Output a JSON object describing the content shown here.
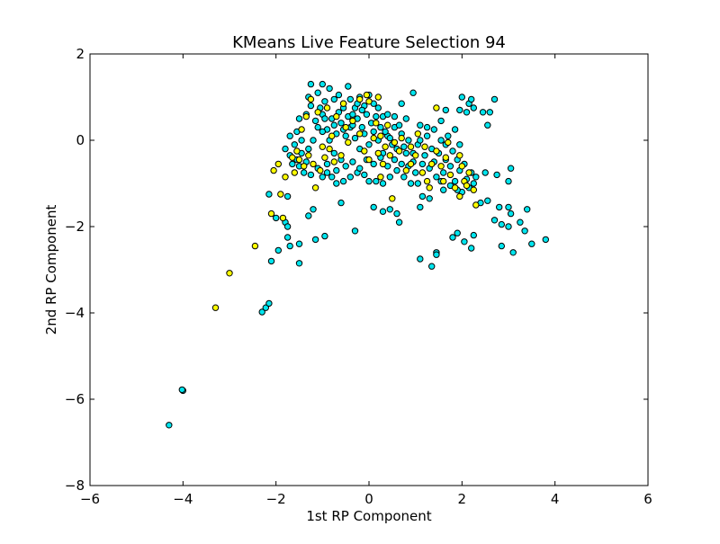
{
  "chart_data": {
    "type": "scatter",
    "title": "KMeans Live Feature Selection 94",
    "xlabel": "1st RP Component",
    "ylabel": "2nd RP Component",
    "xlim": [
      -6,
      6
    ],
    "ylim": [
      -8,
      2
    ],
    "xticks": [
      -6,
      -4,
      -2,
      0,
      2,
      4,
      6
    ],
    "yticks": [
      -8,
      -6,
      -4,
      -2,
      0,
      2
    ],
    "xtick_labels": [
      "−6",
      "−4",
      "−2",
      "0",
      "2",
      "4",
      "6"
    ],
    "ytick_labels": [
      "−8",
      "−6",
      "−4",
      "−2",
      "0",
      "2"
    ],
    "grid": false,
    "legend": false,
    "series": [
      {
        "color": "#00e5ee",
        "points": [
          [
            -4.3,
            -6.6
          ],
          [
            -4.0,
            -5.8
          ],
          [
            -4.02,
            -5.78
          ],
          [
            -2.3,
            -3.98
          ],
          [
            -2.22,
            -3.88
          ],
          [
            -2.15,
            -3.78
          ],
          [
            -2.1,
            -2.8
          ],
          [
            -1.7,
            -2.45
          ],
          [
            -1.75,
            -2.25
          ],
          [
            -1.95,
            -2.55
          ],
          [
            -1.5,
            -2.85
          ],
          [
            -1.5,
            -2.4
          ],
          [
            -1.15,
            -2.3
          ],
          [
            -0.95,
            -2.22
          ],
          [
            -0.3,
            -2.1
          ],
          [
            -1.8,
            -1.9
          ],
          [
            -1.75,
            -2.0
          ],
          [
            -2.0,
            -1.8
          ],
          [
            -2.15,
            -1.25
          ],
          [
            -1.75,
            -1.3
          ],
          [
            -1.3,
            -1.75
          ],
          [
            -1.2,
            -1.6
          ],
          [
            -0.6,
            -1.45
          ],
          [
            0.1,
            -1.55
          ],
          [
            0.3,
            -1.65
          ],
          [
            0.45,
            -1.6
          ],
          [
            0.6,
            -1.7
          ],
          [
            0.65,
            -1.9
          ],
          [
            1.1,
            -1.55
          ],
          [
            1.1,
            -2.75
          ],
          [
            1.35,
            -2.92
          ],
          [
            1.45,
            -2.6
          ],
          [
            1.45,
            -2.65
          ],
          [
            1.8,
            -2.25
          ],
          [
            1.9,
            -2.15
          ],
          [
            2.05,
            -2.35
          ],
          [
            2.2,
            -2.5
          ],
          [
            2.25,
            -2.2
          ],
          [
            2.4,
            -1.45
          ],
          [
            2.55,
            -1.4
          ],
          [
            2.7,
            -1.85
          ],
          [
            2.8,
            -1.55
          ],
          [
            2.85,
            -1.95
          ],
          [
            2.85,
            -2.45
          ],
          [
            3.0,
            -1.55
          ],
          [
            3.05,
            -1.7
          ],
          [
            3.0,
            -2.0
          ],
          [
            3.1,
            -2.6
          ],
          [
            3.25,
            -1.9
          ],
          [
            3.35,
            -2.1
          ],
          [
            3.4,
            -1.6
          ],
          [
            3.5,
            -2.4
          ],
          [
            3.8,
            -2.3
          ],
          [
            3.05,
            -0.65
          ],
          [
            3.0,
            -0.95
          ],
          [
            2.75,
            -0.8
          ],
          [
            2.5,
            -0.75
          ],
          [
            2.3,
            -0.85
          ],
          [
            2.1,
            -0.9
          ],
          [
            1.95,
            -0.7
          ],
          [
            1.85,
            -0.95
          ],
          [
            1.75,
            -1.05
          ],
          [
            1.6,
            -1.15
          ],
          [
            1.3,
            -1.35
          ],
          [
            1.15,
            -1.3
          ],
          [
            1.05,
            -1.0
          ],
          [
            0.9,
            -1.0
          ],
          [
            0.75,
            -0.85
          ],
          [
            0.6,
            -0.7
          ],
          [
            0.45,
            -0.85
          ],
          [
            0.3,
            -1.0
          ],
          [
            0.15,
            -0.95
          ],
          [
            0.0,
            -0.95
          ],
          [
            -0.1,
            -0.8
          ],
          [
            -0.25,
            -0.75
          ],
          [
            -0.4,
            -0.85
          ],
          [
            -0.55,
            -0.95
          ],
          [
            -0.7,
            -1.0
          ],
          [
            -0.8,
            -0.85
          ],
          [
            -0.9,
            -0.75
          ],
          [
            -1.0,
            -0.85
          ],
          [
            -1.1,
            -0.65
          ],
          [
            -1.25,
            -0.8
          ],
          [
            -1.4,
            -0.75
          ],
          [
            -1.5,
            -0.6
          ],
          [
            -1.65,
            -0.55
          ],
          [
            -1.7,
            -0.35
          ],
          [
            -1.8,
            -0.2
          ],
          [
            -1.7,
            0.1
          ],
          [
            -1.55,
            0.2
          ],
          [
            -1.6,
            -0.1
          ],
          [
            -1.45,
            -0.3
          ],
          [
            -1.35,
            -0.5
          ],
          [
            -1.3,
            -0.2
          ],
          [
            -1.2,
            0.0
          ],
          [
            -1.1,
            0.3
          ],
          [
            -1.35,
            0.6
          ],
          [
            -1.25,
            0.8
          ],
          [
            -1.3,
            1.0
          ],
          [
            -1.25,
            1.3
          ],
          [
            -1.1,
            1.1
          ],
          [
            -1.0,
            1.3
          ],
          [
            -0.95,
            0.9
          ],
          [
            -0.85,
            1.2
          ],
          [
            -0.75,
            0.95
          ],
          [
            -0.65,
            1.05
          ],
          [
            -0.55,
            0.85
          ],
          [
            -0.45,
            1.25
          ],
          [
            -0.4,
            0.95
          ],
          [
            -0.3,
            0.75
          ],
          [
            -0.2,
            1.0
          ],
          [
            -0.1,
            0.8
          ],
          [
            0.0,
            1.05
          ],
          [
            0.1,
            0.85
          ],
          [
            0.2,
            0.75
          ],
          [
            0.3,
            0.55
          ],
          [
            0.4,
            0.6
          ],
          [
            0.55,
            0.55
          ],
          [
            0.7,
            0.85
          ],
          [
            0.8,
            0.5
          ],
          [
            0.95,
            1.1
          ],
          [
            1.1,
            0.35
          ],
          [
            1.25,
            0.3
          ],
          [
            1.4,
            0.25
          ],
          [
            1.55,
            0.45
          ],
          [
            1.65,
            0.7
          ],
          [
            1.7,
            0.1
          ],
          [
            1.85,
            0.25
          ],
          [
            1.95,
            0.7
          ],
          [
            2.0,
            1.0
          ],
          [
            2.1,
            0.65
          ],
          [
            2.15,
            0.85
          ],
          [
            2.2,
            0.95
          ],
          [
            2.25,
            0.75
          ],
          [
            2.45,
            0.65
          ],
          [
            2.55,
            0.35
          ],
          [
            2.6,
            0.65
          ],
          [
            2.7,
            0.95
          ],
          [
            1.95,
            -0.1
          ],
          [
            1.8,
            -0.25
          ],
          [
            1.65,
            -0.45
          ],
          [
            1.5,
            -0.3
          ],
          [
            1.35,
            -0.2
          ],
          [
            1.2,
            -0.35
          ],
          [
            1.05,
            -0.1
          ],
          [
            0.95,
            -0.3
          ],
          [
            0.85,
            0.0
          ],
          [
            0.7,
            0.15
          ],
          [
            0.6,
            -0.2
          ],
          [
            0.5,
            -0.1
          ],
          [
            0.4,
            0.1
          ],
          [
            0.3,
            -0.3
          ],
          [
            0.2,
            0.0
          ],
          [
            0.1,
            0.2
          ],
          [
            0.0,
            -0.1
          ],
          [
            -0.1,
            0.15
          ],
          [
            -0.2,
            -0.2
          ],
          [
            -0.3,
            0.05
          ],
          [
            -0.4,
            0.3
          ],
          [
            -0.5,
            0.1
          ],
          [
            -0.6,
            0.4
          ],
          [
            -0.7,
            0.15
          ],
          [
            -0.8,
            0.5
          ],
          [
            -0.9,
            0.25
          ],
          [
            -1.0,
            0.6
          ],
          [
            -0.85,
            0.0
          ],
          [
            -0.75,
            -0.3
          ],
          [
            -0.6,
            -0.45
          ],
          [
            -0.5,
            -0.6
          ],
          [
            -0.35,
            -0.5
          ],
          [
            -0.2,
            -0.65
          ],
          [
            -0.05,
            -0.45
          ],
          [
            0.1,
            -0.55
          ],
          [
            0.25,
            -0.4
          ],
          [
            0.4,
            -0.6
          ],
          [
            0.55,
            -0.45
          ],
          [
            0.7,
            -0.55
          ],
          [
            0.85,
            -0.6
          ],
          [
            1.0,
            -0.75
          ],
          [
            1.15,
            -0.55
          ],
          [
            1.3,
            -0.65
          ],
          [
            1.45,
            -0.85
          ],
          [
            1.6,
            -0.75
          ],
          [
            1.75,
            -0.6
          ],
          [
            1.9,
            -0.45
          ],
          [
            2.05,
            -0.55
          ],
          [
            2.2,
            -0.75
          ],
          [
            2.25,
            -1.0
          ],
          [
            2.15,
            -1.1
          ],
          [
            2.0,
            -1.2
          ],
          [
            1.9,
            -1.15
          ],
          [
            1.55,
            -0.95
          ],
          [
            -0.65,
            0.65
          ],
          [
            -0.55,
            0.25
          ],
          [
            -0.45,
            0.55
          ],
          [
            -0.35,
            0.35
          ],
          [
            -0.25,
            0.5
          ],
          [
            -0.15,
            0.3
          ],
          [
            0.05,
            0.4
          ],
          [
            0.15,
            0.55
          ],
          [
            0.25,
            0.3
          ],
          [
            0.35,
            0.2
          ],
          [
            0.45,
            0.05
          ],
          [
            0.55,
            0.3
          ],
          [
            -1.15,
            0.45
          ],
          [
            -1.05,
            0.75
          ],
          [
            -0.95,
            0.5
          ],
          [
            -1.5,
            0.5
          ],
          [
            -1.45,
            0.0
          ],
          [
            -1.55,
            -0.45
          ],
          [
            -0.9,
            -0.55
          ],
          [
            -0.7,
            -0.7
          ],
          [
            0.8,
            -0.3
          ],
          [
            0.95,
            -0.5
          ],
          [
            1.1,
            0.0
          ],
          [
            1.25,
            0.1
          ],
          [
            1.4,
            -0.5
          ],
          [
            1.55,
            0.0
          ],
          [
            1.65,
            -0.1
          ],
          [
            0.65,
            0.35
          ],
          [
            0.75,
            -0.15
          ],
          [
            -0.05,
            0.6
          ],
          [
            -0.15,
            0.7
          ],
          [
            -0.25,
            0.85
          ],
          [
            -0.35,
            0.6
          ],
          [
            -0.55,
            0.75
          ],
          [
            -0.75,
            0.35
          ],
          [
            -1.0,
            0.2
          ]
        ]
      },
      {
        "color": "#ffff00",
        "points": [
          [
            -3.3,
            -3.88
          ],
          [
            -3.0,
            -3.08
          ],
          [
            -2.45,
            -2.45
          ],
          [
            -2.1,
            -1.7
          ],
          [
            -1.85,
            -1.8
          ],
          [
            -1.9,
            -1.25
          ],
          [
            -2.05,
            -0.7
          ],
          [
            -1.95,
            -0.55
          ],
          [
            -1.8,
            -0.85
          ],
          [
            -1.65,
            -0.4
          ],
          [
            -1.55,
            -0.25
          ],
          [
            -1.5,
            -0.45
          ],
          [
            -1.4,
            -0.6
          ],
          [
            -1.3,
            -0.35
          ],
          [
            -1.15,
            -1.1
          ],
          [
            -1.05,
            -0.7
          ],
          [
            -0.95,
            -0.4
          ],
          [
            -0.85,
            -0.2
          ],
          [
            -1.2,
            -0.55
          ],
          [
            -1.35,
            0.55
          ],
          [
            -1.25,
            0.95
          ],
          [
            -1.1,
            0.65
          ],
          [
            -0.9,
            0.75
          ],
          [
            -0.7,
            0.55
          ],
          [
            -0.55,
            0.85
          ],
          [
            -0.35,
            0.45
          ],
          [
            -0.2,
            0.15
          ],
          [
            -0.1,
            -0.25
          ],
          [
            0.0,
            -0.45
          ],
          [
            0.1,
            0.05
          ],
          [
            0.2,
            -0.3
          ],
          [
            0.3,
            -0.55
          ],
          [
            0.45,
            -0.35
          ],
          [
            0.55,
            -0.05
          ],
          [
            0.65,
            -0.25
          ],
          [
            0.8,
            -0.7
          ],
          [
            0.9,
            -0.55
          ],
          [
            1.0,
            -0.35
          ],
          [
            1.15,
            -0.75
          ],
          [
            1.25,
            -0.95
          ],
          [
            1.35,
            -0.55
          ],
          [
            1.45,
            -0.25
          ],
          [
            1.55,
            -0.6
          ],
          [
            1.65,
            -0.4
          ],
          [
            1.75,
            -0.8
          ],
          [
            1.85,
            -1.1
          ],
          [
            1.95,
            -1.3
          ],
          [
            2.05,
            -0.95
          ],
          [
            2.15,
            -0.75
          ],
          [
            2.25,
            -1.15
          ],
          [
            2.3,
            -1.5
          ],
          [
            2.1,
            -1.05
          ],
          [
            1.45,
            0.75
          ],
          [
            0.0,
            0.9
          ],
          [
            -0.2,
            0.95
          ],
          [
            0.2,
            1.0
          ],
          [
            -0.05,
            1.05
          ],
          [
            0.15,
            0.4
          ],
          [
            0.25,
            0.1
          ],
          [
            0.35,
            -0.15
          ],
          [
            0.5,
            -1.35
          ],
          [
            0.25,
            -0.85
          ],
          [
            -0.45,
            -0.05
          ],
          [
            -0.6,
            -0.35
          ],
          [
            -0.75,
            -0.5
          ],
          [
            -1.0,
            -0.15
          ],
          [
            1.2,
            -0.15
          ],
          [
            1.05,
            0.15
          ],
          [
            0.9,
            -0.15
          ],
          [
            0.7,
            0.05
          ],
          [
            1.7,
            -0.05
          ],
          [
            1.95,
            -0.35
          ],
          [
            2.0,
            -0.6
          ],
          [
            1.6,
            -0.95
          ],
          [
            1.3,
            -1.1
          ],
          [
            0.4,
            0.35
          ],
          [
            -0.5,
            0.3
          ],
          [
            -0.8,
            0.1
          ],
          [
            -1.45,
            0.25
          ],
          [
            -1.6,
            -0.75
          ]
        ]
      }
    ]
  }
}
